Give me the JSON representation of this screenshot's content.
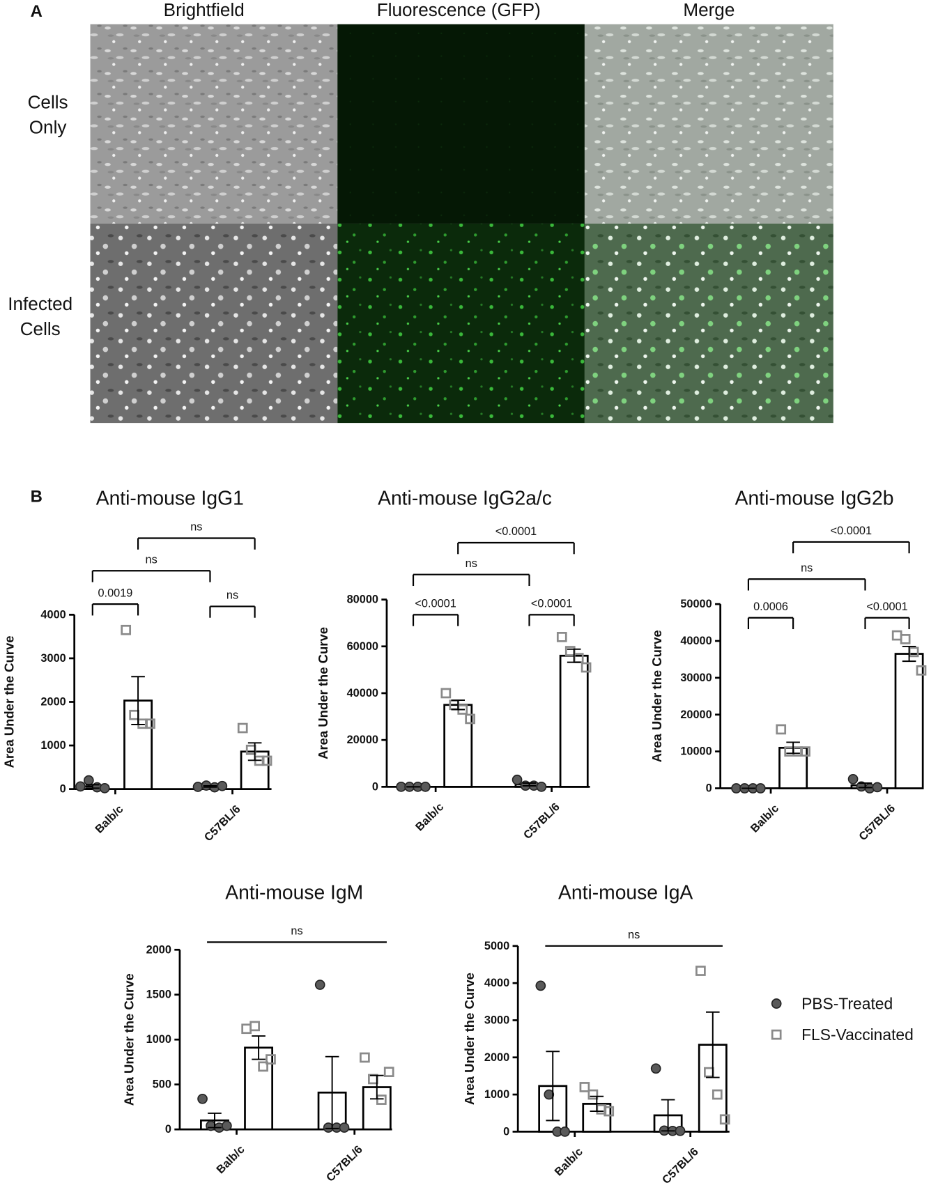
{
  "panel_a": {
    "label": "A",
    "columns": [
      "Brightfield",
      "Fluorescence (GFP)",
      "Merge"
    ],
    "rows": [
      [
        "Cells",
        "Only"
      ],
      [
        "Infected",
        "Cells"
      ]
    ]
  },
  "panel_b_label": "B",
  "chart_data": [
    {
      "type": "bar",
      "title": "Anti-mouse IgG1",
      "ylabel": "Area Under the Curve",
      "categories": [
        "Balb/c",
        "C57BL/6"
      ],
      "series": [
        {
          "color": "#5a5a5a",
          "marker": "circle",
          "values": [
            60,
            60
          ],
          "errors": [
            40,
            15
          ],
          "points": [
            [
              60,
              200,
              40,
              20
            ],
            [
              50,
              80,
              40,
              70
            ]
          ]
        },
        {
          "color": "#8a8a8a",
          "marker": "square",
          "values": [
            2030,
            860
          ],
          "errors": [
            550,
            200
          ],
          "points": [
            [
              3650,
              1700,
              1500,
              1500
            ],
            [
              1400,
              900,
              650,
              650
            ]
          ]
        }
      ],
      "ylim": [
        0,
        4000
      ],
      "yticks": [
        0,
        1000,
        2000,
        3000,
        4000
      ],
      "bracket_ends": true,
      "brackets": [
        {
          "groups": [
            0,
            1
          ],
          "label": "0.0019"
        },
        {
          "groups": [
            2,
            3
          ],
          "label": "ns"
        },
        {
          "groups": [
            0,
            2
          ],
          "label": "ns"
        },
        {
          "groups": [
            1,
            3
          ],
          "label": "ns"
        }
      ]
    },
    {
      "type": "bar",
      "title": "Anti-mouse IgG2a/c",
      "ylabel": "Area Under the Curve",
      "categories": [
        "Balb/c",
        "C57BL/6"
      ],
      "series": [
        {
          "color": "#5a5a5a",
          "marker": "circle",
          "values": [
            0,
            1000
          ],
          "errors": [
            0,
            600
          ],
          "points": [
            [
              0,
              0,
              0,
              0
            ],
            [
              3000,
              500,
              500,
              0
            ]
          ]
        },
        {
          "color": "#8a8a8a",
          "marker": "square",
          "values": [
            35000,
            56000
          ],
          "errors": [
            2000,
            2800
          ],
          "points": [
            [
              40000,
              35000,
              33000,
              29000
            ],
            [
              64000,
              58000,
              55000,
              51000
            ]
          ]
        }
      ],
      "ylim": [
        0,
        80000
      ],
      "yticks": [
        0,
        20000,
        40000,
        60000,
        80000
      ],
      "bracket_ends": true,
      "brackets": [
        {
          "groups": [
            0,
            1
          ],
          "label": "<0.0001"
        },
        {
          "groups": [
            2,
            3
          ],
          "label": "<0.0001"
        },
        {
          "groups": [
            0,
            2
          ],
          "label": "ns"
        },
        {
          "groups": [
            1,
            3
          ],
          "label": "<0.0001"
        }
      ]
    },
    {
      "type": "bar",
      "title": "Anti-mouse IgG2b",
      "ylabel": "Area Under the Curve",
      "categories": [
        "Balb/c",
        "C57BL/6"
      ],
      "series": [
        {
          "color": "#5a5a5a",
          "marker": "circle",
          "values": [
            0,
            800
          ],
          "errors": [
            0,
            600
          ],
          "points": [
            [
              0,
              0,
              0,
              0
            ],
            [
              2500,
              500,
              0,
              300
            ]
          ]
        },
        {
          "color": "#8a8a8a",
          "marker": "square",
          "values": [
            11000,
            36500
          ],
          "errors": [
            1500,
            2000
          ],
          "points": [
            [
              16000,
              10000,
              10000,
              10000
            ],
            [
              41500,
              40500,
              37000,
              32000
            ]
          ]
        }
      ],
      "ylim": [
        0,
        50000
      ],
      "yticks": [
        0,
        10000,
        20000,
        30000,
        40000,
        50000
      ],
      "bracket_ends": true,
      "brackets": [
        {
          "groups": [
            0,
            1
          ],
          "label": "0.0006"
        },
        {
          "groups": [
            2,
            3
          ],
          "label": "<0.0001"
        },
        {
          "groups": [
            0,
            2
          ],
          "label": "ns"
        },
        {
          "groups": [
            1,
            3
          ],
          "label": "<0.0001"
        }
      ]
    },
    {
      "type": "bar",
      "title": "Anti-mouse IgM",
      "ylabel": "Area Under the Curve",
      "categories": [
        "Balb/c",
        "C57BL/6"
      ],
      "series": [
        {
          "color": "#5a5a5a",
          "marker": "circle",
          "values": [
            100,
            410
          ],
          "errors": [
            80,
            400
          ],
          "points": [
            [
              340,
              40,
              20,
              40
            ],
            [
              1610,
              20,
              20,
              20
            ]
          ]
        },
        {
          "color": "#8a8a8a",
          "marker": "square",
          "values": [
            910,
            470
          ],
          "errors": [
            130,
            130
          ],
          "points": [
            [
              1120,
              1150,
              700,
              780
            ],
            [
              800,
              560,
              330,
              640
            ]
          ]
        }
      ],
      "ylim": [
        0,
        2000
      ],
      "yticks": [
        0,
        500,
        1000,
        1500,
        2000
      ],
      "bracket_ends": false,
      "brackets": [
        {
          "groups": [
            0,
            3
          ],
          "label": "ns"
        }
      ]
    },
    {
      "type": "bar",
      "title": "Anti-mouse IgA",
      "ylabel": "Area Under the Curve",
      "categories": [
        "Balb/c",
        "C57BL/6"
      ],
      "series": [
        {
          "name": "PBS-Treated",
          "color": "#5a5a5a",
          "marker": "circle",
          "values": [
            1230,
            440
          ],
          "errors": [
            930,
            420
          ],
          "points": [
            [
              3930,
              1000,
              0,
              0
            ],
            [
              1700,
              30,
              20,
              20
            ]
          ]
        },
        {
          "name": "FLS-Vaccinated",
          "color": "#8a8a8a",
          "marker": "square",
          "values": [
            750,
            2340
          ],
          "errors": [
            200,
            880
          ],
          "points": [
            [
              1200,
              1000,
              600,
              550
            ],
            [
              4330,
              1600,
              1000,
              330
            ]
          ]
        }
      ],
      "ylim": [
        0,
        5000
      ],
      "yticks": [
        0,
        1000,
        2000,
        3000,
        4000,
        5000
      ],
      "bracket_ends": false,
      "brackets": [
        {
          "groups": [
            0,
            3
          ],
          "label": "ns"
        }
      ]
    }
  ]
}
